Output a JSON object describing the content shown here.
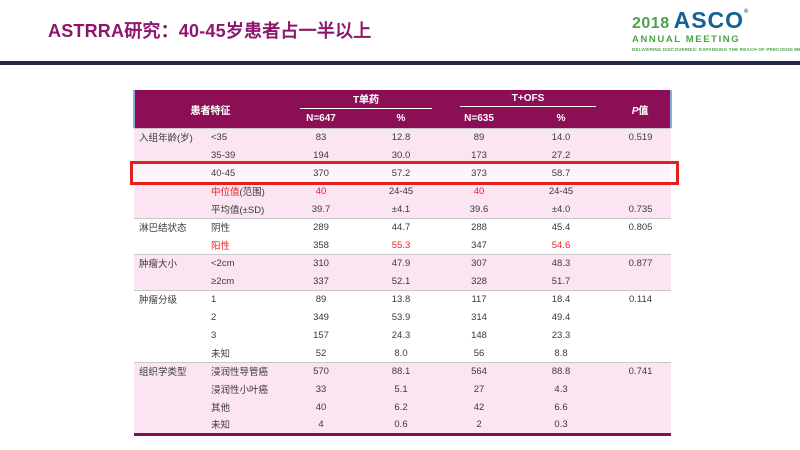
{
  "slide": {
    "title": "ASTRRA研究：40-45岁患者占一半以上"
  },
  "logo": {
    "year": "2018",
    "org": "ASCO",
    "registered": "®",
    "subtitle": "ANNUAL MEETING",
    "tagline": "DELIVERING DISCOVERIES: EXPANDING THE REACH OF PRECISION MEDICINE"
  },
  "colors": {
    "title_magenta": "#8E156B",
    "header_bg": "#8C0E55",
    "band_pink": "#FBE5F2",
    "highlight_row_bg": "#FDF5FA",
    "highlight_border_red": "#E3201B",
    "red_text": "#EE1D1D",
    "navy_divider": "#20294B",
    "table_bottom_border": "#7E1150",
    "header_side_border_blue": "#8FAADC",
    "logo_green": "#4DA248",
    "logo_blue": "#136195"
  },
  "table": {
    "header": {
      "characteristic": "患者特征",
      "group1": "T单药",
      "group2": "T+OFS",
      "n1": "N=647",
      "pct1": "%",
      "n2": "N=635",
      "pct2": "%",
      "p_italic": "P",
      "p_rest": "值"
    },
    "rows": [
      {
        "group": "入组年龄(岁)",
        "group_start": true,
        "band": "pink",
        "label": "<35",
        "cells": [
          "83",
          "12.8",
          "89",
          "14.0",
          "0.519"
        ]
      },
      {
        "group": "",
        "band": "pink",
        "label": "35-39",
        "cells": [
          "194",
          "30.0",
          "173",
          "27.2",
          ""
        ]
      },
      {
        "group": "",
        "band": "pink",
        "highlight": true,
        "label": "40-45",
        "cells": [
          "370",
          "57.2",
          "373",
          "58.7",
          ""
        ]
      },
      {
        "group": "",
        "band": "pink",
        "label_red": "中位值",
        "label": "(范围)",
        "cells": [
          "40",
          "24-45",
          "40",
          "24-45",
          ""
        ],
        "red_cells": [
          0,
          2
        ]
      },
      {
        "group": "",
        "band": "pink",
        "label": "平均值(±SD)",
        "cells": [
          "39.7",
          "±4.1",
          "39.6",
          "±4.0",
          "0.735"
        ]
      },
      {
        "group": "淋巴结状态",
        "group_start": true,
        "band": "white",
        "label": "阴性",
        "cells": [
          "289",
          "44.7",
          "288",
          "45.4",
          "0.805"
        ]
      },
      {
        "group": "",
        "band": "white",
        "label_red": "阳性",
        "label": "",
        "cells": [
          "358",
          "55.3",
          "347",
          "54.6",
          ""
        ],
        "red_cells": [
          1,
          3
        ]
      },
      {
        "group": "肿瘤大小",
        "group_start": true,
        "band": "pink",
        "label": "<2cm",
        "cells": [
          "310",
          "47.9",
          "307",
          "48.3",
          "0.877"
        ]
      },
      {
        "group": "",
        "band": "pink",
        "label": "≥2cm",
        "cells": [
          "337",
          "52.1",
          "328",
          "51.7",
          ""
        ]
      },
      {
        "group": "肿瘤分级",
        "group_start": true,
        "band": "white",
        "label": "1",
        "cells": [
          "89",
          "13.8",
          "117",
          "18.4",
          "0.114"
        ]
      },
      {
        "group": "",
        "band": "white",
        "label": "2",
        "cells": [
          "349",
          "53.9",
          "314",
          "49.4",
          ""
        ]
      },
      {
        "group": "",
        "band": "white",
        "label": "3",
        "cells": [
          "157",
          "24.3",
          "148",
          "23.3",
          ""
        ]
      },
      {
        "group": "",
        "band": "white",
        "label": "未知",
        "cells": [
          "52",
          "8.0",
          "56",
          "8.8",
          ""
        ]
      },
      {
        "group": "组织学类型",
        "group_start": true,
        "band": "pink",
        "label": "浸润性导管癌",
        "cells": [
          "570",
          "88.1",
          "564",
          "88.8",
          "0.741"
        ]
      },
      {
        "group": "",
        "band": "pink",
        "label": "浸润性小叶癌",
        "cells": [
          "33",
          "5.1",
          "27",
          "4.3",
          ""
        ]
      },
      {
        "group": "",
        "band": "pink",
        "label": "其他",
        "cells": [
          "40",
          "6.2",
          "42",
          "6.6",
          ""
        ]
      },
      {
        "group": "",
        "band": "pink",
        "label": "未知",
        "cells": [
          "4",
          "0.6",
          "2",
          "0.3",
          ""
        ]
      }
    ]
  }
}
